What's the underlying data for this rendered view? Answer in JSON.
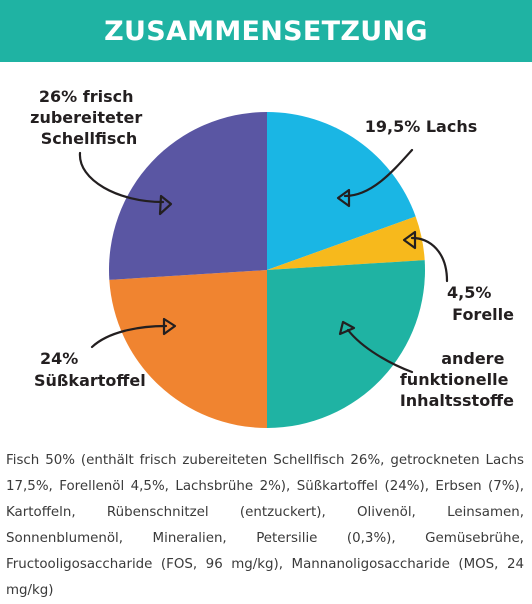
{
  "header": {
    "title": "ZUSAMMENSETZUNG"
  },
  "chart_data": {
    "type": "pie",
    "title": "ZUSAMMENSETZUNG",
    "slices": [
      {
        "id": "lachs",
        "value": 19.5,
        "label_lines": [
          "19,5% Lachs"
        ],
        "color": "#1ab6e4"
      },
      {
        "id": "forelle",
        "value": 4.5,
        "label_lines": [
          "4,5%",
          "Forelle"
        ],
        "color": "#f7b91c"
      },
      {
        "id": "andere",
        "value": 26,
        "label_lines": [
          "andere",
          "funktionelle",
          "Inhaltsstoffe"
        ],
        "color": "#1fb3a3"
      },
      {
        "id": "suesskartoffel",
        "value": 24,
        "label_lines": [
          "24%",
          "Süßkartoffel"
        ],
        "color": "#f08430"
      },
      {
        "id": "schellfisch",
        "value": 26,
        "label_lines": [
          "26% frisch",
          "zubereiteter",
          "Schellfisch"
        ],
        "color": "#5a56a3"
      }
    ]
  },
  "description": "Fisch 50% (enthält frisch zubereiteten Schellfisch 26%, getrockneten Lachs 17,5%, Forellenöl 4,5%, Lachsbrühe 2%), Süßkartoffel (24%), Erbsen (7%), Kartoffeln, Rübenschnitzel (entzuckert), Olivenöl, Leinsamen, Sonnenblumenöl, Mineralien, Petersilie (0,3%), Gemüsebrühe, Fructooligosaccharide (FOS, 96 mg/kg), Mannanoligosaccharide (MOS, 24 mg/kg)",
  "colors": {
    "header_background": "#1fb3a3",
    "header_text": "#ffffff",
    "label_text": "#231f20",
    "arrow": "#231f20"
  }
}
